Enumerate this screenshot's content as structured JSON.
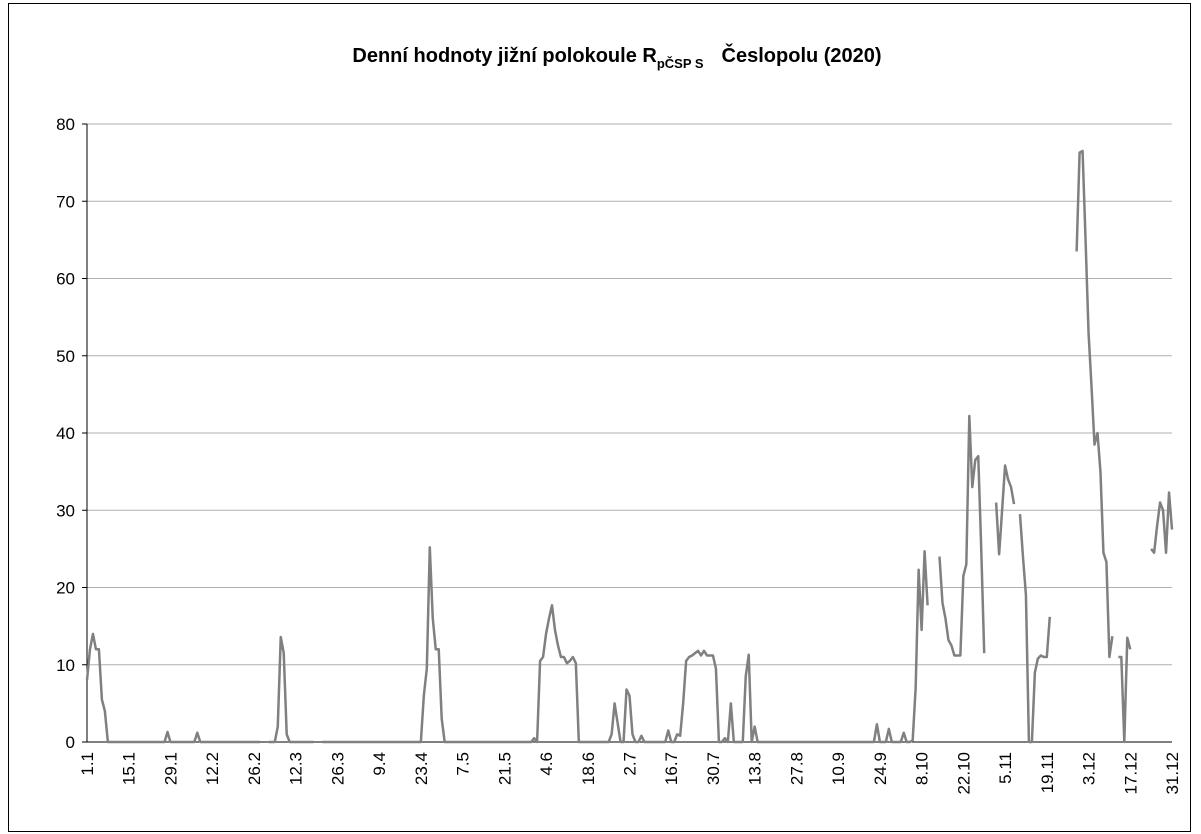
{
  "chart_data": {
    "type": "line",
    "title": "Denní hodnoty jižní polokoule R",
    "title_subscript": "pČSP S",
    "title_suffix": "Česlopolu (2020)",
    "categories": [
      "1.1",
      null,
      null,
      null,
      null,
      null,
      null,
      null,
      null,
      null,
      null,
      null,
      null,
      null,
      "15.1",
      null,
      null,
      null,
      null,
      null,
      null,
      null,
      null,
      null,
      null,
      null,
      null,
      null,
      "29.1",
      null,
      null,
      null,
      null,
      null,
      null,
      null,
      null,
      null,
      null,
      null,
      null,
      null,
      "12.2",
      null,
      null,
      null,
      null,
      null,
      null,
      null,
      null,
      null,
      null,
      null,
      null,
      null,
      "26.2",
      null,
      null,
      null,
      null,
      null,
      null,
      null,
      null,
      null,
      null,
      null,
      null,
      null,
      "12.3",
      null,
      null,
      null,
      null,
      null,
      null,
      null,
      null,
      null,
      null,
      null,
      null,
      null,
      "26.3",
      null,
      null,
      null,
      null,
      null,
      null,
      null,
      null,
      null,
      null,
      null,
      null,
      null,
      "9.4",
      null,
      null,
      null,
      null,
      null,
      null,
      null,
      null,
      null,
      null,
      null,
      null,
      null,
      "23.4",
      null,
      null,
      null,
      null,
      null,
      null,
      null,
      null,
      null,
      null,
      null,
      null,
      null,
      "7.5",
      null,
      null,
      null,
      null,
      null,
      null,
      null,
      null,
      null,
      null,
      null,
      null,
      null,
      "21.5",
      null,
      null,
      null,
      null,
      null,
      null,
      null,
      null,
      null,
      null,
      null,
      null,
      null,
      "4.6",
      null,
      null,
      null,
      null,
      null,
      null,
      null,
      null,
      null,
      null,
      null,
      null,
      null,
      "18.6",
      null,
      null,
      null,
      null,
      null,
      null,
      null,
      null,
      null,
      null,
      null,
      null,
      null,
      "2.7",
      null,
      null,
      null,
      null,
      null,
      null,
      null,
      null,
      null,
      null,
      null,
      null,
      null,
      "16.7",
      null,
      null,
      null,
      null,
      null,
      null,
      null,
      null,
      null,
      null,
      null,
      null,
      null,
      "30.7",
      null,
      null,
      null,
      null,
      null,
      null,
      null,
      null,
      null,
      null,
      null,
      null,
      null,
      "13.8",
      null,
      null,
      null,
      null,
      null,
      null,
      null,
      null,
      null,
      null,
      null,
      null,
      null,
      "27.8",
      null,
      null,
      null,
      null,
      null,
      null,
      null,
      null,
      null,
      null,
      null,
      null,
      null,
      "10.9",
      null,
      null,
      null,
      null,
      null,
      null,
      null,
      null,
      null,
      null,
      null,
      null,
      null,
      "24.9",
      null,
      null,
      null,
      null,
      null,
      null,
      null,
      null,
      null,
      null,
      null,
      null,
      null,
      "8.10",
      null,
      null,
      null,
      null,
      null,
      null,
      null,
      null,
      null,
      null,
      null,
      null,
      null,
      "22.10",
      null,
      null,
      null,
      null,
      null,
      null,
      null,
      null,
      null,
      null,
      null,
      null,
      null,
      "5.11",
      null,
      null,
      null,
      null,
      null,
      null,
      null,
      null,
      null,
      null,
      null,
      null,
      null,
      "19.11",
      null,
      null,
      null,
      null,
      null,
      null,
      null,
      null,
      null,
      null,
      null,
      null,
      null,
      "3.12",
      null,
      null,
      null,
      null,
      null,
      null,
      null,
      null,
      null,
      null,
      null,
      null,
      null,
      "17.12",
      null,
      null,
      null,
      null,
      null,
      null,
      null,
      null,
      null,
      null,
      null,
      null,
      null,
      "31.12"
    ],
    "values": [
      8,
      12,
      14,
      12,
      12,
      5.5,
      4,
      0,
      0,
      0,
      0,
      0,
      0,
      0,
      0,
      0,
      0,
      0,
      0,
      0,
      0,
      0,
      0,
      0,
      0,
      0,
      0,
      1.3,
      0,
      0,
      0,
      0,
      0,
      0,
      0,
      0,
      0,
      1.2,
      0,
      0,
      0,
      0,
      0,
      0,
      0,
      0,
      0,
      0,
      0,
      0,
      0,
      0,
      0,
      0,
      0,
      0,
      0,
      0,
      0,
      null,
      null,
      0,
      0,
      0,
      2,
      13.6,
      11.5,
      1,
      0,
      0,
      0,
      0,
      0,
      0,
      0,
      0,
      0,
      null,
      null,
      0,
      0,
      0,
      0,
      0,
      0,
      0,
      0,
      0,
      0,
      0,
      0,
      0,
      0,
      0,
      0,
      0,
      0,
      0,
      0,
      0,
      0,
      0,
      0,
      0,
      0,
      0,
      0,
      0,
      0,
      0,
      0,
      0,
      0,
      6,
      9.5,
      25.2,
      16,
      12,
      12,
      3,
      0,
      0,
      0,
      0,
      0,
      0,
      0,
      0,
      0,
      0,
      0,
      0,
      0,
      0,
      0,
      0,
      0,
      0,
      0,
      0,
      0,
      0,
      0,
      0,
      0,
      0,
      0,
      0,
      0,
      0,
      0.5,
      0,
      10.5,
      11,
      14,
      16,
      17.7,
      14.5,
      12.5,
      11,
      11,
      10.2,
      10.5,
      11,
      10.2,
      0,
      0,
      0,
      0,
      0,
      0,
      0,
      0,
      0,
      0,
      0,
      1,
      5,
      2.5,
      0,
      0,
      6.8,
      6,
      1,
      0,
      0,
      0.8,
      0,
      0,
      0,
      0,
      0,
      0,
      0,
      0,
      1.5,
      0,
      0,
      1,
      0.8,
      5,
      10.5,
      11,
      11.2,
      11.5,
      11.8,
      11.2,
      11.8,
      11.2,
      11.2,
      11.2,
      9.5,
      0,
      0,
      0.5,
      0,
      5,
      0,
      0,
      0,
      0,
      8.5,
      11.3,
      0,
      2,
      0,
      0,
      0,
      0,
      0,
      0,
      0,
      0,
      0,
      0,
      0,
      0,
      0,
      0,
      0,
      0,
      0,
      0,
      0,
      0,
      0,
      0,
      0,
      0,
      0,
      0,
      0,
      0,
      0,
      0,
      0,
      0,
      0,
      0,
      0,
      0,
      0,
      0,
      0,
      0,
      2.3,
      0,
      0,
      0,
      1.7,
      0,
      0,
      0,
      0,
      1.2,
      0,
      0,
      0.2,
      7,
      22.3,
      14.5,
      24.7,
      17.7,
      null,
      null,
      null,
      24,
      18,
      16,
      13.2,
      12.5,
      11.2,
      11.2,
      11.2,
      21.5,
      23,
      42.2,
      33,
      36.5,
      37,
      25,
      11.5,
      null,
      null,
      null,
      31,
      24.3,
      30,
      35.8,
      34,
      33,
      30.8,
      null,
      29.5,
      24,
      19,
      0,
      0,
      9,
      10.8,
      11.2,
      11,
      11,
      16.2,
      null,
      null,
      null,
      null,
      null,
      null,
      null,
      null,
      63.5,
      76.3,
      76.5,
      65,
      53,
      46,
      38.5,
      40,
      35,
      24.5,
      23.3,
      11,
      13.7,
      null,
      11,
      11,
      0,
      13.5,
      12,
      null,
      null,
      null,
      null,
      null,
      null,
      25,
      24.5,
      28,
      31,
      30,
      24.5,
      32.3,
      27.5
    ],
    "color": "#808080",
    "ylim": [
      0,
      80
    ],
    "yticks": [
      0,
      10,
      20,
      30,
      40,
      50,
      60,
      70,
      80
    ],
    "grid": true
  }
}
